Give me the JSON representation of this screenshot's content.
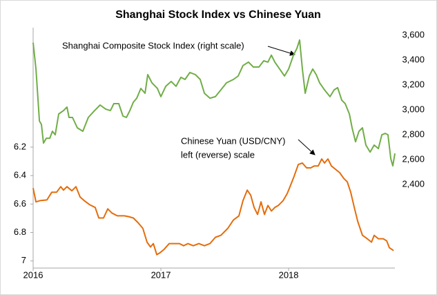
{
  "chart_data": {
    "type": "line",
    "title": "Shanghai Stock Index vs Chinese Yuan",
    "annotations": [
      "Shanghai Composite Stock Index (right scale)",
      "Chinese Yuan (USD/CNY)",
      "left (reverse) scale"
    ],
    "xlim": [
      2016,
      2018.832
    ],
    "xticks": [
      2016,
      2017,
      2018
    ],
    "ylim": [
      7.05,
      5.36
    ],
    "yticks": [
      6.2,
      6.4,
      6.6,
      6.8,
      7
    ],
    "y2lim": [
      1730,
      3660
    ],
    "y2ticks": [
      {
        "value": 2400,
        "label": "2,400"
      },
      {
        "value": 2600,
        "label": "2,600"
      },
      {
        "value": 2800,
        "label": "2,800"
      },
      {
        "value": 3000,
        "label": "3,000"
      },
      {
        "value": 3200,
        "label": "3,200"
      },
      {
        "value": 3400,
        "label": "3,400"
      },
      {
        "value": 3600,
        "label": "3,600"
      }
    ],
    "series": [
      {
        "color": "#70ad47",
        "axis": "y2",
        "x": [
          2016,
          2016.022,
          2016.049,
          2016.065,
          2016.081,
          2016.103,
          2016.13,
          2016.151,
          2016.173,
          2016.2,
          2016.238,
          2016.265,
          2016.281,
          2016.308,
          2016.346,
          2016.389,
          2016.432,
          2016.481,
          2016.524,
          2016.568,
          2016.605,
          2016.632,
          2016.67,
          2016.703,
          2016.73,
          2016.757,
          2016.784,
          2016.811,
          2016.843,
          2016.876,
          2016.897,
          2016.93,
          2016.973,
          2017.0,
          2017.038,
          2017.081,
          2017.119,
          2017.157,
          2017.189,
          2017.227,
          2017.27,
          2017.308,
          2017.341,
          2017.384,
          2017.427,
          2017.47,
          2017.514,
          2017.568,
          2017.605,
          2017.643,
          2017.686,
          2017.724,
          2017.768,
          2017.805,
          2017.838,
          2017.865,
          2017.892,
          2017.93,
          2017.968,
          2018.0,
          2018.038,
          2018.065,
          2018.086,
          2018.108,
          2018.13,
          2018.162,
          2018.189,
          2018.216,
          2018.243,
          2018.281,
          2018.324,
          2018.357,
          2018.384,
          2018.416,
          2018.443,
          2018.476,
          2018.497,
          2018.524,
          2018.551,
          2018.578,
          2018.605,
          2018.638,
          2018.67,
          2018.703,
          2018.73,
          2018.757,
          2018.778,
          2018.8,
          2018.816,
          2018.832
        ],
        "values": [
          3539,
          3328,
          2911,
          2883,
          2733,
          2772,
          2772,
          2828,
          2800,
          2967,
          2994,
          3022,
          2939,
          2939,
          2856,
          2828,
          2939,
          2994,
          3039,
          3006,
          2994,
          3050,
          3050,
          2950,
          2939,
          2994,
          3061,
          3094,
          3172,
          3133,
          3283,
          3217,
          3172,
          3106,
          3189,
          3228,
          3189,
          3261,
          3244,
          3300,
          3283,
          3244,
          3133,
          3094,
          3106,
          3161,
          3217,
          3244,
          3272,
          3356,
          3383,
          3344,
          3344,
          3394,
          3383,
          3439,
          3383,
          3328,
          3272,
          3328,
          3439,
          3494,
          3561,
          3328,
          3133,
          3272,
          3328,
          3283,
          3217,
          3161,
          3106,
          3161,
          3178,
          3078,
          3050,
          2967,
          2856,
          2744,
          2828,
          2856,
          2717,
          2661,
          2717,
          2689,
          2800,
          2811,
          2800,
          2606,
          2550,
          2650
        ]
      },
      {
        "color": "#e46c0a",
        "x": [
          2016,
          2016.022,
          2016.054,
          2016.108,
          2016.146,
          2016.184,
          2016.216,
          2016.238,
          2016.265,
          2016.303,
          2016.335,
          2016.368,
          2016.4,
          2016.443,
          2016.486,
          2016.514,
          2016.551,
          2016.584,
          2016.616,
          2016.659,
          2016.714,
          2016.746,
          2016.784,
          2016.822,
          2016.859,
          2016.892,
          2016.919,
          2016.941,
          2016.968,
          2016.995,
          2017.027,
          2017.065,
          2017.103,
          2017.146,
          2017.178,
          2017.211,
          2017.254,
          2017.297,
          2017.341,
          2017.384,
          2017.427,
          2017.47,
          2017.524,
          2017.568,
          2017.611,
          2017.643,
          2017.676,
          2017.703,
          2017.73,
          2017.757,
          2017.784,
          2017.811,
          2017.838,
          2017.865,
          2017.892,
          2017.919,
          2017.957,
          2017.989,
          2018.011,
          2018.043,
          2018.076,
          2018.108,
          2018.141,
          2018.173,
          2018.2,
          2018.232,
          2018.259,
          2018.281,
          2018.308,
          2018.335,
          2018.368,
          2018.4,
          2018.432,
          2018.459,
          2018.486,
          2018.514,
          2018.541,
          2018.578,
          2018.616,
          2018.649,
          2018.67,
          2018.703,
          2018.741,
          2018.768,
          2018.789,
          2018.822
        ],
        "values": [
          6.488,
          6.585,
          6.576,
          6.571,
          6.517,
          6.517,
          6.478,
          6.502,
          6.478,
          6.507,
          6.478,
          6.551,
          6.576,
          6.605,
          6.624,
          6.698,
          6.698,
          6.634,
          6.663,
          6.683,
          6.683,
          6.688,
          6.698,
          6.732,
          6.771,
          6.868,
          6.902,
          6.878,
          6.956,
          6.941,
          6.917,
          6.878,
          6.878,
          6.878,
          6.893,
          6.878,
          6.893,
          6.878,
          6.893,
          6.878,
          6.834,
          6.82,
          6.771,
          6.712,
          6.683,
          6.576,
          6.502,
          6.537,
          6.624,
          6.673,
          6.585,
          6.673,
          6.61,
          6.649,
          6.624,
          6.61,
          6.576,
          6.527,
          6.478,
          6.405,
          6.322,
          6.312,
          6.346,
          6.346,
          6.332,
          6.332,
          6.283,
          6.312,
          6.283,
          6.332,
          6.356,
          6.38,
          6.42,
          6.444,
          6.517,
          6.624,
          6.722,
          6.82,
          6.844,
          6.868,
          6.82,
          6.844,
          6.844,
          6.859,
          6.907,
          6.927
        ]
      }
    ]
  }
}
